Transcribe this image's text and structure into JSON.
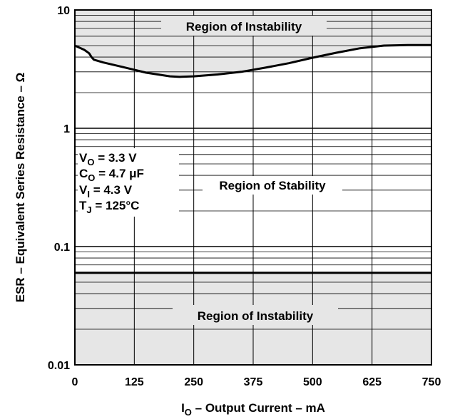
{
  "chart_data": {
    "type": "line",
    "title": "",
    "xlabel": {
      "main": "I",
      "sub": "O",
      "rest": " – Output Current – mA"
    },
    "ylabel": "ESR – Equivalent Series Resistance – Ω",
    "x_ticks": [
      "0",
      "125",
      "250",
      "375",
      "500",
      "625",
      "750"
    ],
    "y_ticks": [
      {
        "label": "10",
        "value": 10
      },
      {
        "label": "1",
        "value": 1
      },
      {
        "label": "0.1",
        "value": 0.1
      },
      {
        "label": "0.01",
        "value": 0.01
      }
    ],
    "xlim": [
      0,
      750
    ],
    "ylim": [
      0.01,
      10
    ],
    "y_scale": "log",
    "grid": true,
    "series": [
      {
        "name": "",
        "x": [
          0,
          20,
          30,
          35,
          40,
          60,
          100,
          150,
          200,
          220,
          250,
          300,
          350,
          400,
          450,
          500,
          550,
          600,
          650,
          700,
          750
        ],
        "y": [
          5.0,
          4.6,
          4.3,
          4.0,
          3.8,
          3.6,
          3.3,
          2.95,
          2.75,
          2.72,
          2.75,
          2.85,
          3.0,
          3.25,
          3.55,
          3.95,
          4.35,
          4.75,
          5.0,
          5.05,
          5.05
        ]
      },
      {
        "name": "",
        "x": [
          0,
          750
        ],
        "y": [
          0.06,
          0.06
        ]
      }
    ],
    "annotations": {
      "upper_region": "Region of Instability",
      "middle_region": "Region of Stability",
      "lower_region": "Region of Instability",
      "conditions": [
        {
          "main": "V",
          "sub": "O",
          "rest": " = 3.3 V"
        },
        {
          "main": "C",
          "sub": "O",
          "rest": " = 4.7 μF"
        },
        {
          "main": "V",
          "sub": "I",
          "rest": " = 4.3 V"
        },
        {
          "main": "T",
          "sub": "J",
          "rest": " = 125°C"
        }
      ]
    },
    "colors": {
      "unstable_fill": "#e6e6e6",
      "line": "#000000",
      "grid": "#000000"
    }
  }
}
